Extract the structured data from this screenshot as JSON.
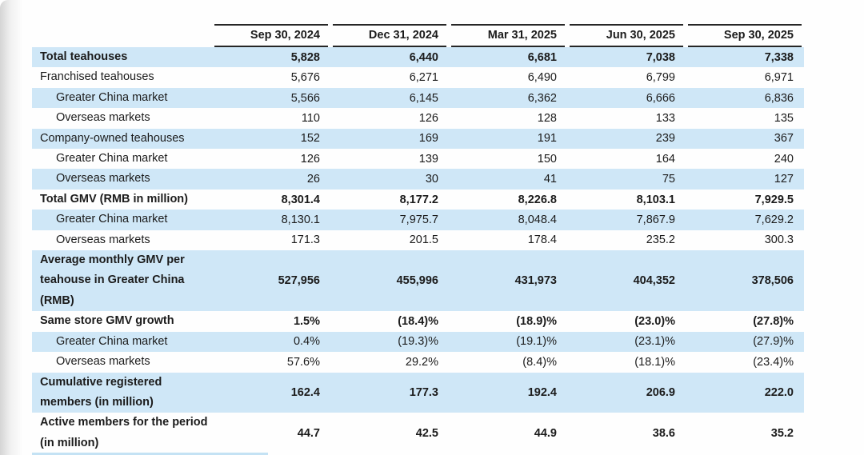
{
  "table": {
    "columns": [
      "Sep 30, 2024",
      "Dec 31, 2024",
      "Mar 31, 2025",
      "Jun 30, 2025",
      "Sep 30, 2025"
    ],
    "rows": [
      {
        "label": "Total teahouses",
        "values": [
          "5,828",
          "6,440",
          "6,681",
          "7,038",
          "7,338"
        ],
        "bold": true,
        "indent": false,
        "shade": "blue",
        "wrap": false
      },
      {
        "label": "Franchised teahouses",
        "values": [
          "5,676",
          "6,271",
          "6,490",
          "6,799",
          "6,971"
        ],
        "bold": false,
        "indent": false,
        "shade": "white",
        "wrap": false
      },
      {
        "label": "Greater China market",
        "values": [
          "5,566",
          "6,145",
          "6,362",
          "6,666",
          "6,836"
        ],
        "bold": false,
        "indent": true,
        "shade": "blue",
        "wrap": false
      },
      {
        "label": "Overseas markets",
        "values": [
          "110",
          "126",
          "128",
          "133",
          "135"
        ],
        "bold": false,
        "indent": true,
        "shade": "white",
        "wrap": false
      },
      {
        "label": "Company-owned teahouses",
        "values": [
          "152",
          "169",
          "191",
          "239",
          "367"
        ],
        "bold": false,
        "indent": false,
        "shade": "blue",
        "wrap": false
      },
      {
        "label": "Greater China market",
        "values": [
          "126",
          "139",
          "150",
          "164",
          "240"
        ],
        "bold": false,
        "indent": true,
        "shade": "white",
        "wrap": false
      },
      {
        "label": "Overseas markets",
        "values": [
          "26",
          "30",
          "41",
          "75",
          "127"
        ],
        "bold": false,
        "indent": true,
        "shade": "blue",
        "wrap": false
      },
      {
        "label": "Total GMV (RMB in million)",
        "values": [
          "8,301.4",
          "8,177.2",
          "8,226.8",
          "8,103.1",
          "7,929.5"
        ],
        "bold": true,
        "indent": false,
        "shade": "white",
        "wrap": false
      },
      {
        "label": "Greater China market",
        "values": [
          "8,130.1",
          "7,975.7",
          "8,048.4",
          "7,867.9",
          "7,629.2"
        ],
        "bold": false,
        "indent": true,
        "shade": "blue",
        "wrap": false
      },
      {
        "label": "Overseas markets",
        "values": [
          "171.3",
          "201.5",
          "178.4",
          "235.2",
          "300.3"
        ],
        "bold": false,
        "indent": true,
        "shade": "white",
        "wrap": false
      },
      {
        "label": "Average monthly GMV per teahouse in Greater China (RMB)",
        "values": [
          "527,956",
          "455,996",
          "431,973",
          "404,352",
          "378,506"
        ],
        "bold": true,
        "indent": false,
        "shade": "blue",
        "wrap": true
      },
      {
        "label": "Same store GMV growth",
        "values": [
          "1.5%",
          "(18.4)%",
          "(18.9)%",
          "(23.0)%",
          "(27.8)%"
        ],
        "bold": true,
        "indent": false,
        "shade": "white",
        "wrap": false
      },
      {
        "label": "Greater China market",
        "values": [
          "0.4%",
          "(19.3)%",
          "(19.1)%",
          "(23.1)%",
          "(27.9)%"
        ],
        "bold": false,
        "indent": true,
        "shade": "blue",
        "wrap": false
      },
      {
        "label": "Overseas markets",
        "values": [
          "57.6%",
          "29.2%",
          "(8.4)%",
          "(18.1)%",
          "(23.4)%"
        ],
        "bold": false,
        "indent": true,
        "shade": "white",
        "wrap": false
      },
      {
        "label": "Cumulative registered members (in million)",
        "values": [
          "162.4",
          "177.3",
          "192.4",
          "206.9",
          "222.0"
        ],
        "bold": true,
        "indent": false,
        "shade": "blue",
        "wrap": true
      },
      {
        "label": "Active members for the period (in million)",
        "values": [
          "44.7",
          "42.5",
          "44.9",
          "38.6",
          "35.2"
        ],
        "bold": true,
        "indent": false,
        "shade": "white",
        "wrap": true
      }
    ]
  },
  "colors": {
    "row_stripe": "#cfe7f7",
    "header_rule": "#262626",
    "text": "#1b1b1b"
  }
}
